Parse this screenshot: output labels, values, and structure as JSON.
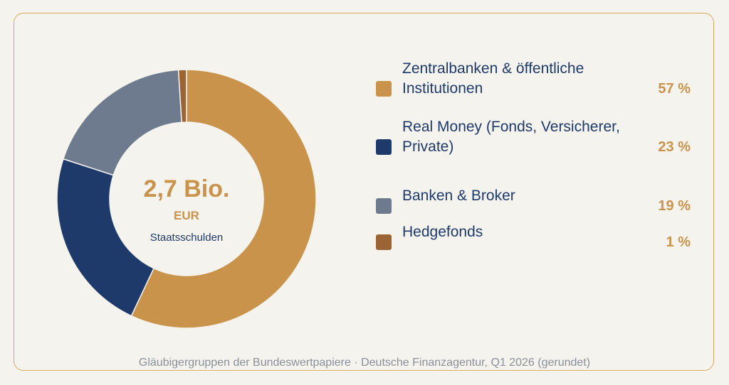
{
  "chart_data": {
    "type": "pie",
    "donut": true,
    "center_title": "2,7 Bio.",
    "center_unit": "EUR",
    "center_label": "Staatsschulden",
    "caption": "Gläubigergruppen der Bundeswertpapiere · Deutsche Finanzagentur, Q1 2026 (gerundet)",
    "categories": [
      "Zentralbanken & öffentliche Institutionen",
      "Real Money (Fonds, Versicherer, Private)",
      "Banken & Broker",
      "Hedgefonds"
    ],
    "values": [
      57,
      23,
      19,
      1
    ],
    "value_labels": [
      "57 %",
      "23 %",
      "19 %",
      "1 %"
    ],
    "colors": [
      "#c9934b",
      "#1e3a6b",
      "#6e7b8e",
      "#9a6434"
    ]
  }
}
